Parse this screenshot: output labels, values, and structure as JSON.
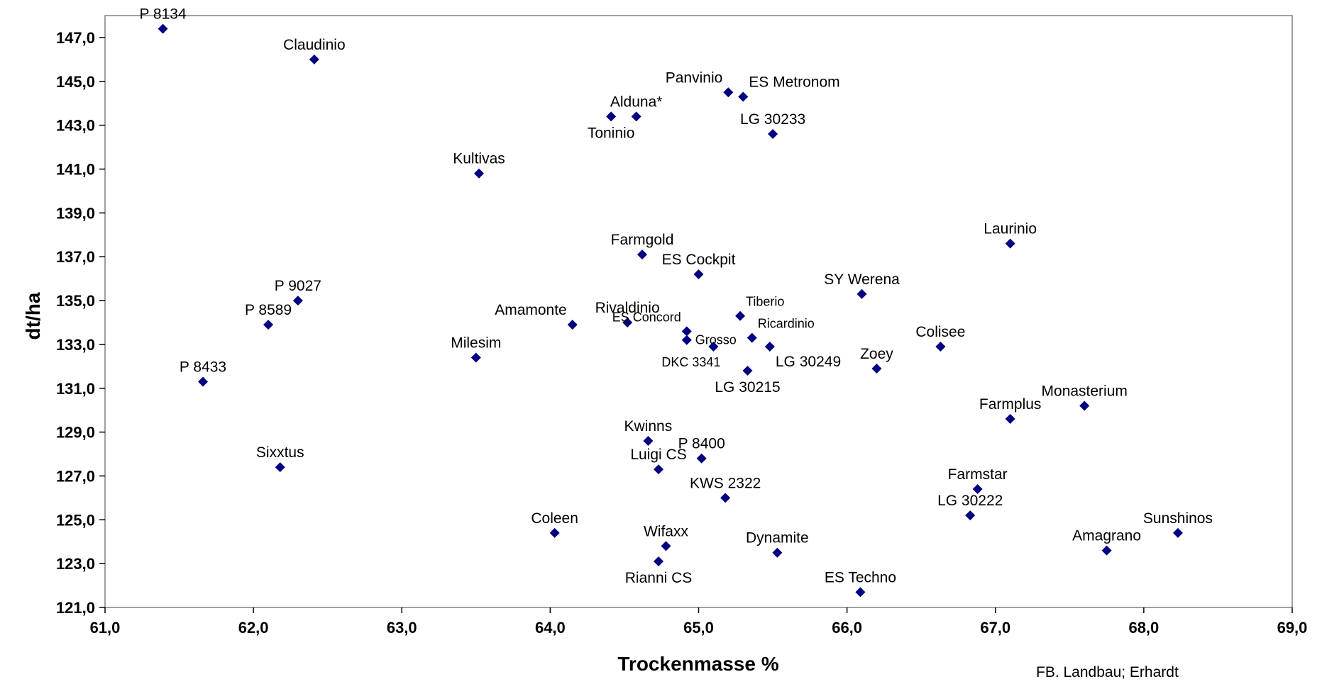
{
  "chart_data": {
    "type": "scatter",
    "xlabel": "Trockenmasse %",
    "ylabel": "dt/ha",
    "xlim": [
      61.0,
      69.0
    ],
    "ylim": [
      121.0,
      147.8
    ],
    "x_ticks": [
      "61,0",
      "62,0",
      "63,0",
      "64,0",
      "65,0",
      "66,0",
      "67,0",
      "68,0",
      "69,0"
    ],
    "y_ticks": [
      "121,0",
      "123,0",
      "125,0",
      "127,0",
      "129,0",
      "131,0",
      "133,0",
      "135,0",
      "137,0",
      "139,0",
      "141,0",
      "143,0",
      "145,0",
      "147,0"
    ],
    "marker_color": "#000080",
    "grid": false,
    "credit": "FB. Landbau; Erhardt",
    "points": [
      {
        "label": "P 8134",
        "x": 61.39,
        "y": 147.4,
        "pos": "above"
      },
      {
        "label": "Claudinio",
        "x": 62.41,
        "y": 146.0,
        "pos": "above"
      },
      {
        "label": "Panvinio",
        "x": 65.2,
        "y": 144.5,
        "pos": "aboveleft"
      },
      {
        "label": "ES Metronom",
        "x": 65.3,
        "y": 144.3,
        "pos": "aboveright"
      },
      {
        "label": "Alduna*",
        "x": 64.58,
        "y": 143.4,
        "pos": "above"
      },
      {
        "label": "Toninio",
        "x": 64.41,
        "y": 143.4,
        "pos": "below"
      },
      {
        "label": "LG 30233",
        "x": 65.5,
        "y": 142.6,
        "pos": "above"
      },
      {
        "label": "Kultivas",
        "x": 63.52,
        "y": 140.8,
        "pos": "above"
      },
      {
        "label": "Laurinio",
        "x": 67.1,
        "y": 137.6,
        "pos": "above"
      },
      {
        "label": "Farmgold",
        "x": 64.62,
        "y": 137.1,
        "pos": "above"
      },
      {
        "label": "ES Cockpit",
        "x": 65.0,
        "y": 136.2,
        "pos": "above"
      },
      {
        "label": "SY Werena",
        "x": 66.1,
        "y": 135.3,
        "pos": "above"
      },
      {
        "label": "P 9027",
        "x": 62.3,
        "y": 135.0,
        "pos": "above"
      },
      {
        "label": "Tiberio",
        "x": 65.28,
        "y": 134.3,
        "pos": "aboveright",
        "small": true
      },
      {
        "label": "P 8589",
        "x": 62.1,
        "y": 133.9,
        "pos": "above"
      },
      {
        "label": "Amamonte",
        "x": 64.15,
        "y": 133.9,
        "pos": "aboveleft"
      },
      {
        "label": "Rivaldinio",
        "x": 64.52,
        "y": 134.0,
        "pos": "above"
      },
      {
        "label": "ES Concord",
        "x": 64.92,
        "y": 133.6,
        "pos": "aboveleft",
        "small": true
      },
      {
        "label": "Ricardinio",
        "x": 65.36,
        "y": 133.3,
        "pos": "aboveright",
        "small": true
      },
      {
        "label": "Grosso",
        "x": 64.92,
        "y": 133.2,
        "pos": "right",
        "small": true
      },
      {
        "label": "DKC 3341",
        "x": 65.1,
        "y": 132.9,
        "pos": "belowleft",
        "small": true
      },
      {
        "label": "Colisee",
        "x": 66.63,
        "y": 132.9,
        "pos": "above"
      },
      {
        "label": "LG 30249",
        "x": 65.48,
        "y": 132.9,
        "pos": "belowright"
      },
      {
        "label": "Milesim",
        "x": 63.5,
        "y": 132.4,
        "pos": "above"
      },
      {
        "label": "Zoey",
        "x": 66.2,
        "y": 131.9,
        "pos": "above"
      },
      {
        "label": "LG 30215",
        "x": 65.33,
        "y": 131.8,
        "pos": "below"
      },
      {
        "label": "P 8433",
        "x": 61.66,
        "y": 131.3,
        "pos": "above"
      },
      {
        "label": "Monasterium",
        "x": 67.6,
        "y": 130.2,
        "pos": "above"
      },
      {
        "label": "Farmplus",
        "x": 67.1,
        "y": 129.6,
        "pos": "above"
      },
      {
        "label": "Kwinns",
        "x": 64.66,
        "y": 128.6,
        "pos": "above"
      },
      {
        "label": "P 8400",
        "x": 65.02,
        "y": 127.8,
        "pos": "above"
      },
      {
        "label": "Sixxtus",
        "x": 62.18,
        "y": 127.4,
        "pos": "above"
      },
      {
        "label": "Luigi CS",
        "x": 64.73,
        "y": 127.3,
        "pos": "above"
      },
      {
        "label": "Farmstar",
        "x": 66.88,
        "y": 126.4,
        "pos": "above"
      },
      {
        "label": "KWS 2322",
        "x": 65.18,
        "y": 126.0,
        "pos": "above"
      },
      {
        "label": "LG 30222",
        "x": 66.83,
        "y": 125.2,
        "pos": "above"
      },
      {
        "label": "Coleen",
        "x": 64.03,
        "y": 124.4,
        "pos": "above"
      },
      {
        "label": "Sunshinos",
        "x": 68.23,
        "y": 124.4,
        "pos": "above"
      },
      {
        "label": "Wifaxx",
        "x": 64.78,
        "y": 123.8,
        "pos": "above"
      },
      {
        "label": "Amagrano",
        "x": 67.75,
        "y": 123.6,
        "pos": "above"
      },
      {
        "label": "Dynamite",
        "x": 65.53,
        "y": 123.5,
        "pos": "above"
      },
      {
        "label": "Rianni CS",
        "x": 64.73,
        "y": 123.1,
        "pos": "below"
      },
      {
        "label": "ES Techno",
        "x": 66.09,
        "y": 121.7,
        "pos": "above"
      }
    ]
  }
}
